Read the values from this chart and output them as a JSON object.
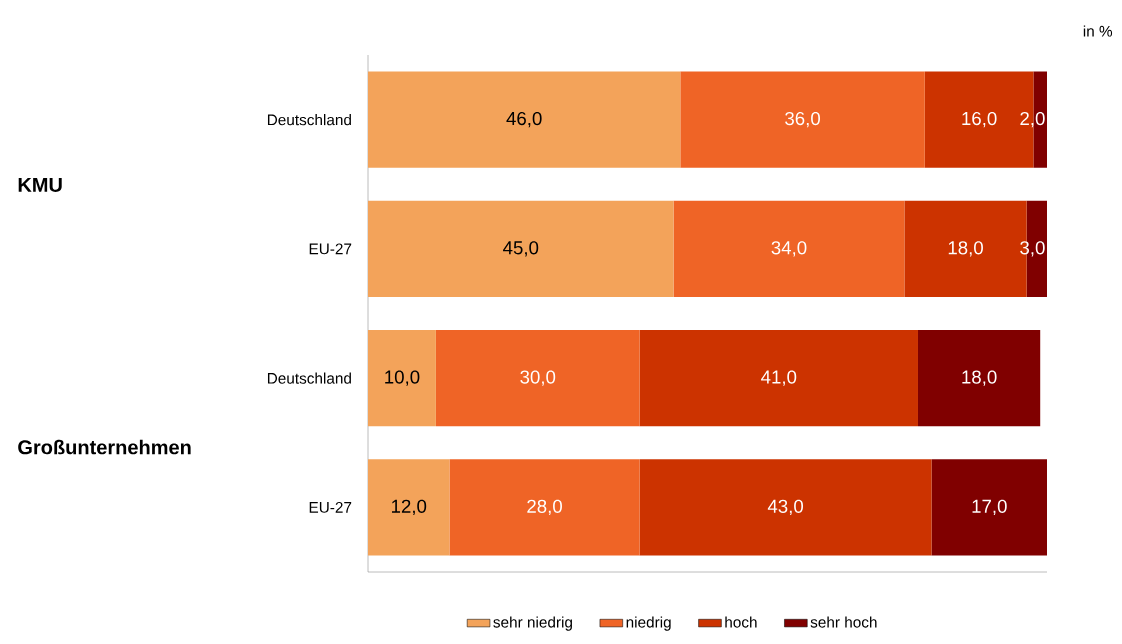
{
  "chart_data": {
    "type": "bar",
    "orientation": "horizontal",
    "stacked": true,
    "categories": [
      "Deutschland",
      "EU-27",
      "Deutschland",
      "EU-27"
    ],
    "series": [
      {
        "name": "sehr niedrig",
        "color": "#f3a35a",
        "values": [
          46,
          45,
          10,
          12
        ],
        "value_labels": [
          "46,0",
          "45,0",
          "10,0",
          "12,0"
        ]
      },
      {
        "name": "niedrig",
        "color": "#ef6426",
        "values": [
          36,
          34,
          30,
          28
        ],
        "value_labels": [
          "36,0",
          "34,0",
          "30,0",
          "28,0"
        ]
      },
      {
        "name": "hoch",
        "color": "#cc3300",
        "values": [
          16,
          18,
          41,
          43
        ],
        "value_labels": [
          "16,0",
          "18,0",
          "41,0",
          "43,0"
        ]
      },
      {
        "name": "sehr hoch",
        "color": "#800000",
        "values": [
          2,
          3,
          18,
          17
        ],
        "value_labels": [
          "2,0",
          "3,0",
          "18,0",
          "17,0"
        ]
      }
    ],
    "xlim": [
      0,
      100
    ],
    "tick_labels": "y",
    "legend": "bottom",
    "grid": false,
    "annotations": [
      "in %",
      "KMU",
      "Großunternehmen"
    ]
  }
}
